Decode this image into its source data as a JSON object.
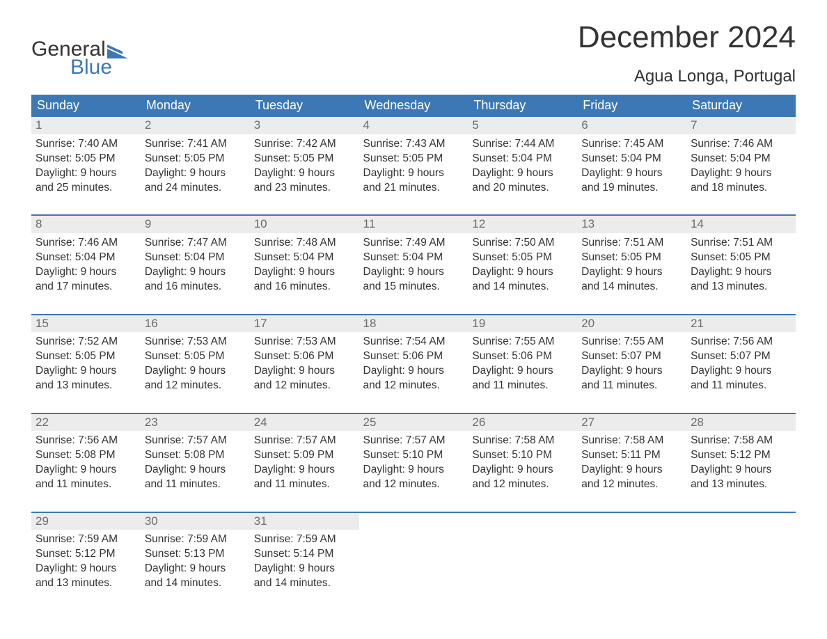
{
  "logo": {
    "word1": "General",
    "word2": "Blue",
    "flag_color": "#3b78b5",
    "text_dark": "#333333"
  },
  "header": {
    "month_title": "December 2024",
    "location": "Agua Longa, Portugal"
  },
  "styling": {
    "header_bg": "#3b78b5",
    "header_text": "#ffffff",
    "daynum_bg": "#ececec",
    "daynum_text": "#6c6c6c",
    "body_text": "#333333",
    "week_border": "#3b78b5",
    "page_bg": "#ffffff",
    "th_fontsize": 18,
    "title_fontsize": 44,
    "location_fontsize": 24,
    "cell_fontsize": 15.5,
    "columns": 7
  },
  "day_headers": [
    "Sunday",
    "Monday",
    "Tuesday",
    "Wednesday",
    "Thursday",
    "Friday",
    "Saturday"
  ],
  "weeks": [
    [
      {
        "n": "1",
        "sunrise": "7:40 AM",
        "sunset": "5:05 PM",
        "dl1": "Daylight: 9 hours",
        "dl2": "and 25 minutes."
      },
      {
        "n": "2",
        "sunrise": "7:41 AM",
        "sunset": "5:05 PM",
        "dl1": "Daylight: 9 hours",
        "dl2": "and 24 minutes."
      },
      {
        "n": "3",
        "sunrise": "7:42 AM",
        "sunset": "5:05 PM",
        "dl1": "Daylight: 9 hours",
        "dl2": "and 23 minutes."
      },
      {
        "n": "4",
        "sunrise": "7:43 AM",
        "sunset": "5:05 PM",
        "dl1": "Daylight: 9 hours",
        "dl2": "and 21 minutes."
      },
      {
        "n": "5",
        "sunrise": "7:44 AM",
        "sunset": "5:04 PM",
        "dl1": "Daylight: 9 hours",
        "dl2": "and 20 minutes."
      },
      {
        "n": "6",
        "sunrise": "7:45 AM",
        "sunset": "5:04 PM",
        "dl1": "Daylight: 9 hours",
        "dl2": "and 19 minutes."
      },
      {
        "n": "7",
        "sunrise": "7:46 AM",
        "sunset": "5:04 PM",
        "dl1": "Daylight: 9 hours",
        "dl2": "and 18 minutes."
      }
    ],
    [
      {
        "n": "8",
        "sunrise": "7:46 AM",
        "sunset": "5:04 PM",
        "dl1": "Daylight: 9 hours",
        "dl2": "and 17 minutes."
      },
      {
        "n": "9",
        "sunrise": "7:47 AM",
        "sunset": "5:04 PM",
        "dl1": "Daylight: 9 hours",
        "dl2": "and 16 minutes."
      },
      {
        "n": "10",
        "sunrise": "7:48 AM",
        "sunset": "5:04 PM",
        "dl1": "Daylight: 9 hours",
        "dl2": "and 16 minutes."
      },
      {
        "n": "11",
        "sunrise": "7:49 AM",
        "sunset": "5:04 PM",
        "dl1": "Daylight: 9 hours",
        "dl2": "and 15 minutes."
      },
      {
        "n": "12",
        "sunrise": "7:50 AM",
        "sunset": "5:05 PM",
        "dl1": "Daylight: 9 hours",
        "dl2": "and 14 minutes."
      },
      {
        "n": "13",
        "sunrise": "7:51 AM",
        "sunset": "5:05 PM",
        "dl1": "Daylight: 9 hours",
        "dl2": "and 14 minutes."
      },
      {
        "n": "14",
        "sunrise": "7:51 AM",
        "sunset": "5:05 PM",
        "dl1": "Daylight: 9 hours",
        "dl2": "and 13 minutes."
      }
    ],
    [
      {
        "n": "15",
        "sunrise": "7:52 AM",
        "sunset": "5:05 PM",
        "dl1": "Daylight: 9 hours",
        "dl2": "and 13 minutes."
      },
      {
        "n": "16",
        "sunrise": "7:53 AM",
        "sunset": "5:05 PM",
        "dl1": "Daylight: 9 hours",
        "dl2": "and 12 minutes."
      },
      {
        "n": "17",
        "sunrise": "7:53 AM",
        "sunset": "5:06 PM",
        "dl1": "Daylight: 9 hours",
        "dl2": "and 12 minutes."
      },
      {
        "n": "18",
        "sunrise": "7:54 AM",
        "sunset": "5:06 PM",
        "dl1": "Daylight: 9 hours",
        "dl2": "and 12 minutes."
      },
      {
        "n": "19",
        "sunrise": "7:55 AM",
        "sunset": "5:06 PM",
        "dl1": "Daylight: 9 hours",
        "dl2": "and 11 minutes."
      },
      {
        "n": "20",
        "sunrise": "7:55 AM",
        "sunset": "5:07 PM",
        "dl1": "Daylight: 9 hours",
        "dl2": "and 11 minutes."
      },
      {
        "n": "21",
        "sunrise": "7:56 AM",
        "sunset": "5:07 PM",
        "dl1": "Daylight: 9 hours",
        "dl2": "and 11 minutes."
      }
    ],
    [
      {
        "n": "22",
        "sunrise": "7:56 AM",
        "sunset": "5:08 PM",
        "dl1": "Daylight: 9 hours",
        "dl2": "and 11 minutes."
      },
      {
        "n": "23",
        "sunrise": "7:57 AM",
        "sunset": "5:08 PM",
        "dl1": "Daylight: 9 hours",
        "dl2": "and 11 minutes."
      },
      {
        "n": "24",
        "sunrise": "7:57 AM",
        "sunset": "5:09 PM",
        "dl1": "Daylight: 9 hours",
        "dl2": "and 11 minutes."
      },
      {
        "n": "25",
        "sunrise": "7:57 AM",
        "sunset": "5:10 PM",
        "dl1": "Daylight: 9 hours",
        "dl2": "and 12 minutes."
      },
      {
        "n": "26",
        "sunrise": "7:58 AM",
        "sunset": "5:10 PM",
        "dl1": "Daylight: 9 hours",
        "dl2": "and 12 minutes."
      },
      {
        "n": "27",
        "sunrise": "7:58 AM",
        "sunset": "5:11 PM",
        "dl1": "Daylight: 9 hours",
        "dl2": "and 12 minutes."
      },
      {
        "n": "28",
        "sunrise": "7:58 AM",
        "sunset": "5:12 PM",
        "dl1": "Daylight: 9 hours",
        "dl2": "and 13 minutes."
      }
    ],
    [
      {
        "n": "29",
        "sunrise": "7:59 AM",
        "sunset": "5:12 PM",
        "dl1": "Daylight: 9 hours",
        "dl2": "and 13 minutes."
      },
      {
        "n": "30",
        "sunrise": "7:59 AM",
        "sunset": "5:13 PM",
        "dl1": "Daylight: 9 hours",
        "dl2": "and 14 minutes."
      },
      {
        "n": "31",
        "sunrise": "7:59 AM",
        "sunset": "5:14 PM",
        "dl1": "Daylight: 9 hours",
        "dl2": "and 14 minutes."
      },
      null,
      null,
      null,
      null
    ]
  ],
  "labels": {
    "sunrise_prefix": "Sunrise: ",
    "sunset_prefix": "Sunset: "
  }
}
